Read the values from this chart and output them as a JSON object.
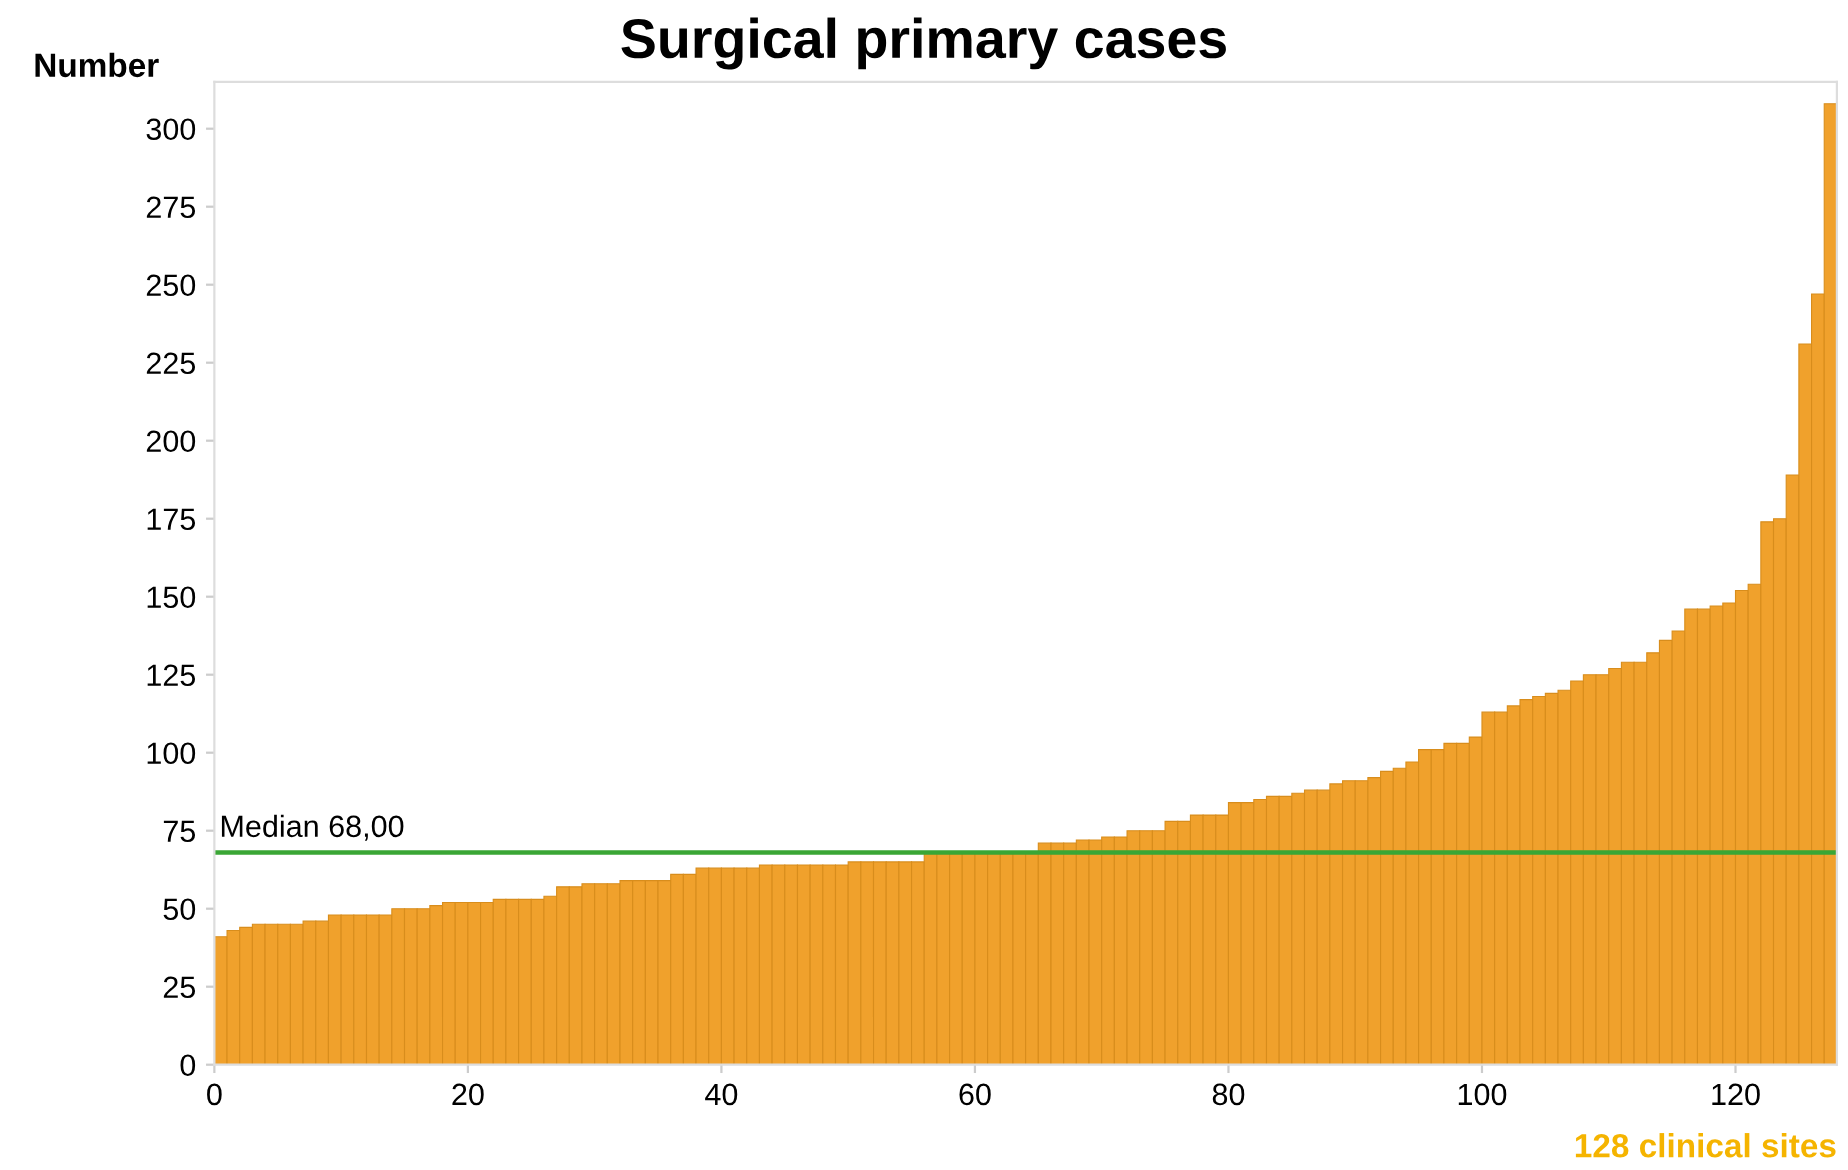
{
  "chart_data": {
    "type": "bar",
    "title": "Surgical primary cases",
    "ylabel": "Number",
    "x": [
      0.5,
      1.5,
      2.5,
      3.5,
      4.5,
      5.5,
      6.5,
      7.5,
      8.5,
      9.5,
      10.5,
      11.5,
      12.5,
      13.5,
      14.5,
      15.5,
      16.5,
      17.5,
      18.5,
      19.5,
      20.5,
      21.5,
      22.5,
      23.5,
      24.5,
      25.5,
      26.5,
      27.5,
      28.5,
      29.5,
      30.5,
      31.5,
      32.5,
      33.5,
      34.5,
      35.5,
      36.5,
      37.5,
      38.5,
      39.5,
      40.5,
      41.5,
      42.5,
      43.5,
      44.5,
      45.5,
      46.5,
      47.5,
      48.5,
      49.5,
      50.5,
      51.5,
      52.5,
      53.5,
      54.5,
      55.5,
      56.5,
      57.5,
      58.5,
      59.5,
      60.5,
      61.5,
      62.5,
      63.5,
      64.5,
      65.5,
      66.5,
      67.5,
      68.5,
      69.5,
      70.5,
      71.5,
      72.5,
      73.5,
      74.5,
      75.5,
      76.5,
      77.5,
      78.5,
      79.5,
      80.5,
      81.5,
      82.5,
      83.5,
      84.5,
      85.5,
      86.5,
      87.5,
      88.5,
      89.5,
      90.5,
      91.5,
      92.5,
      93.5,
      94.5,
      95.5,
      96.5,
      97.5,
      98.5,
      99.5,
      100.5,
      101.5,
      102.5,
      103.5,
      104.5,
      105.5,
      106.5,
      107.5,
      108.5,
      109.5,
      110.5,
      111.5,
      112.5,
      113.5,
      114.5,
      115.5,
      116.5,
      117.5,
      118.5,
      119.5,
      120.5,
      121.5,
      122.5,
      123.5,
      124.5,
      125.5,
      126.5,
      127.5
    ],
    "values": [
      41,
      43,
      44,
      45,
      45,
      45,
      45,
      46,
      46,
      48,
      48,
      48,
      48,
      48,
      50,
      50,
      50,
      51,
      52,
      52,
      52,
      52,
      53,
      53,
      53,
      53,
      54,
      57,
      57,
      58,
      58,
      58,
      59,
      59,
      59,
      59,
      61,
      61,
      63,
      63,
      63,
      63,
      63,
      64,
      64,
      64,
      64,
      64,
      64,
      64,
      65,
      65,
      65,
      65,
      65,
      65,
      68,
      68,
      68,
      68,
      68,
      68,
      68,
      68,
      68,
      71,
      71,
      71,
      72,
      72,
      73,
      73,
      75,
      75,
      75,
      78,
      78,
      80,
      80,
      80,
      84,
      84,
      85,
      86,
      86,
      87,
      88,
      88,
      90,
      91,
      91,
      92,
      94,
      95,
      97,
      101,
      101,
      103,
      103,
      105,
      113,
      113,
      115,
      117,
      118,
      119,
      120,
      123,
      125,
      125,
      127,
      129,
      129,
      132,
      136,
      139,
      146,
      146,
      147,
      148,
      152,
      154,
      174,
      175,
      189,
      231,
      247,
      308
    ],
    "color": "#f0a12c",
    "xlim": [
      0,
      128
    ],
    "xticks": [
      0,
      20,
      40,
      60,
      80,
      100,
      120
    ],
    "ylim": [
      0,
      315
    ],
    "yticks": [
      0,
      25,
      50,
      75,
      100,
      125,
      150,
      175,
      200,
      225,
      250,
      275,
      300
    ],
    "ref_lines": [
      {
        "axis": "y",
        "value": 68,
        "label": "Median 68,00",
        "color": "#3aa635"
      }
    ],
    "annotations": [
      "128 clinical sites"
    ],
    "grid": false,
    "legend": false
  }
}
